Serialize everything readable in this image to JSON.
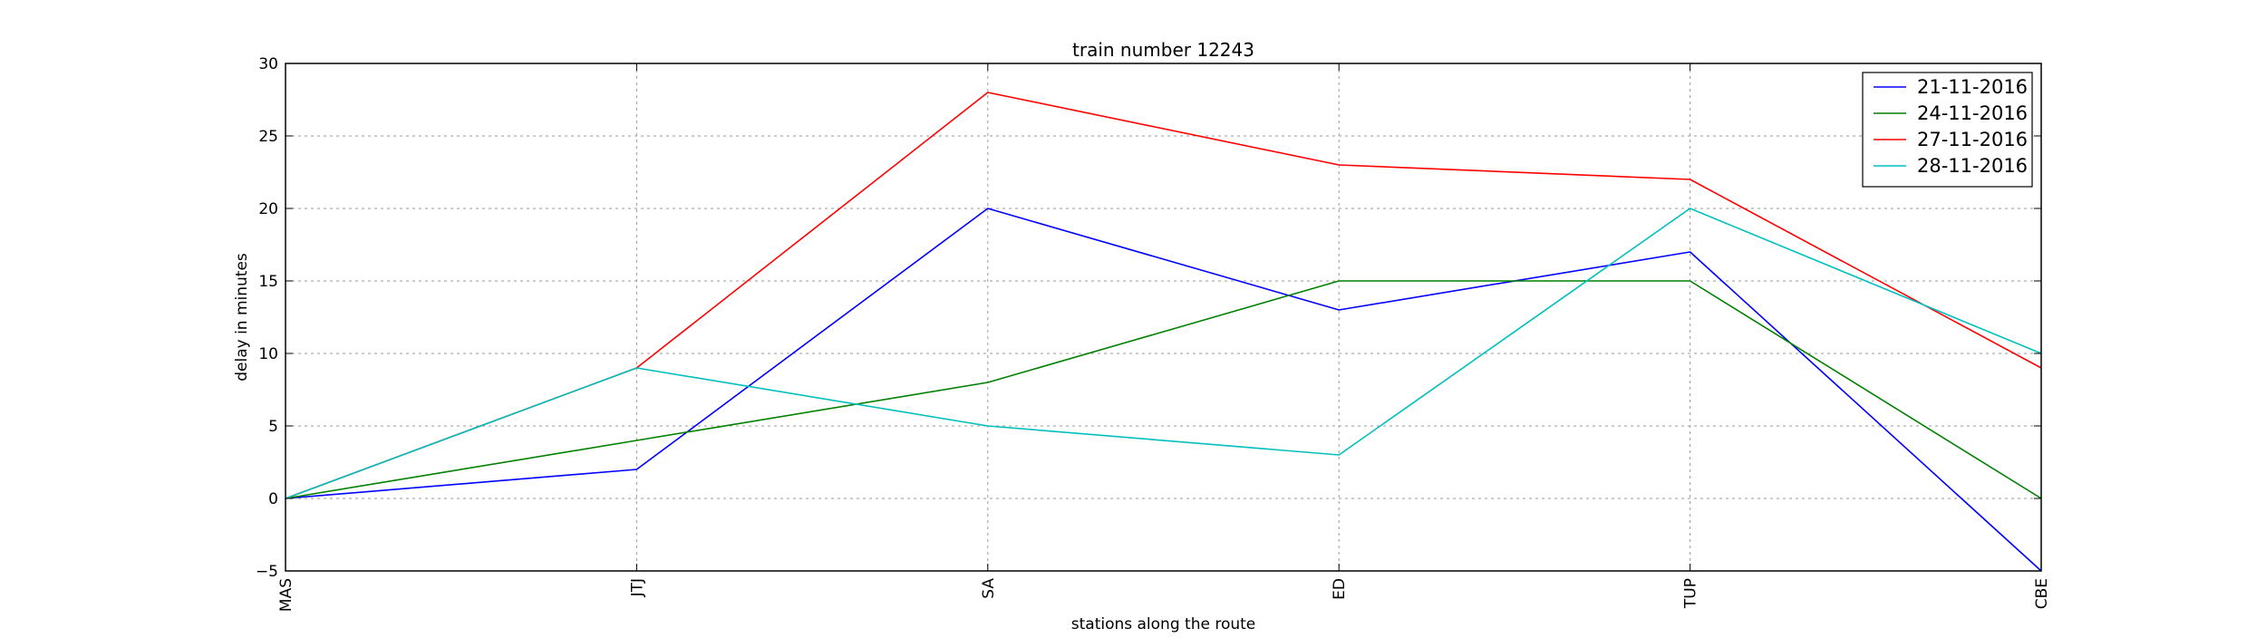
{
  "chart_data": {
    "type": "line",
    "title": "train number 12243",
    "xlabel": "stations along the route",
    "ylabel": "delay in minutes",
    "categories": [
      "MAS",
      "JTJ",
      "SA",
      "ED",
      "TUP",
      "CBE"
    ],
    "ylim": [
      -5,
      30
    ],
    "yticks": [
      -5,
      0,
      5,
      10,
      15,
      20,
      25,
      30
    ],
    "grid": true,
    "legend_position": "top-right",
    "series": [
      {
        "name": "21-11-2016",
        "color": "#0000ff",
        "values": [
          0,
          2,
          20,
          13,
          17,
          -5
        ]
      },
      {
        "name": "24-11-2016",
        "color": "#008000",
        "values": [
          0,
          4,
          8,
          15,
          15,
          0
        ]
      },
      {
        "name": "27-11-2016",
        "color": "#ff0000",
        "values": [
          0,
          9,
          28,
          23,
          22,
          9
        ]
      },
      {
        "name": "28-11-2016",
        "color": "#00bfbf",
        "values": [
          0,
          9,
          5,
          3,
          20,
          10
        ]
      }
    ]
  }
}
